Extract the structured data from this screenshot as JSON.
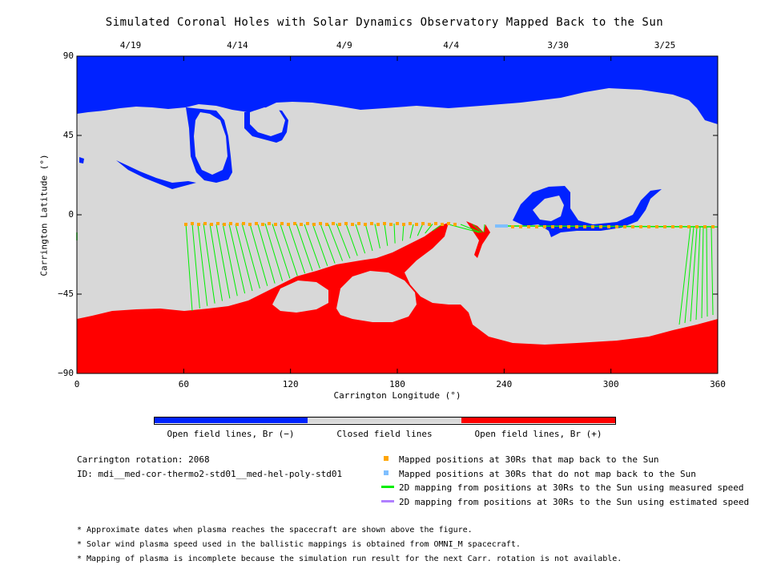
{
  "title": "Simulated Coronal Holes with Solar Dynamics Observatory Mapped Back to the Sun",
  "map": {
    "xlabel": "Carrington Longitude (°)",
    "ylabel": "Carrington Latitude (°)",
    "x_ticks": [
      "0",
      "60",
      "120",
      "180",
      "240",
      "300",
      "360"
    ],
    "y_ticks": [
      "90",
      "45",
      "0",
      "−45",
      "−90"
    ],
    "top_dates": [
      "4/19",
      "4/14",
      "4/9",
      "4/4",
      "3/30",
      "3/25"
    ],
    "colors": {
      "negative": "#0022ff",
      "closed": "#d8d8d8",
      "positive": "#ff0000",
      "mapped_point": "#ffa500",
      "unmapped_point": "#7fbfff",
      "measured_line": "#00ee00",
      "estimated_line": "#b07fff"
    }
  },
  "colorbar": {
    "labels": [
      "Open field lines, Br (−)",
      "Closed field lines",
      "Open field lines, Br (+)"
    ]
  },
  "info": {
    "rotation": "Carrington rotation: 2068",
    "id": "ID: mdi__med-cor-thermo2-std01__med-hel-poly-std01"
  },
  "legend": {
    "mapped": "Mapped positions at 30Rs that map back to the Sun",
    "unmapped": "Mapped positions at 30Rs that do not map back to the Sun",
    "measured": "2D mapping from positions at 30Rs to the Sun using measured speed",
    "estimated": "2D mapping from positions at 30Rs to the Sun using estimated speed"
  },
  "notes": [
    "* Approximate dates when plasma reaches the spacecraft are shown above the figure.",
    "* Solar wind plasma speed used in the ballistic mappings is obtained from OMNI_M spacecraft.",
    "* Mapping of plasma is incomplete because the simulation run result for the next Carr. rotation is not available."
  ]
}
